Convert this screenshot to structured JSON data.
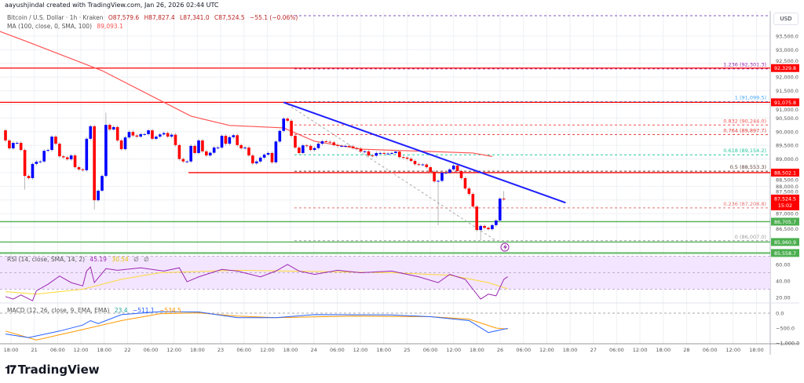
{
  "header": {
    "credit": "aayushjindal created with TradingView.com, Jan 26, 2026 02:44 UTC"
  },
  "legend": {
    "symbol": "Bitcoin / U.S. Dollar · 1h · Kraken",
    "open": "O87,579.6",
    "high": "H87,827.4",
    "low": "L87,341.0",
    "close": "C87,524.5",
    "change": "−55.1 (−0.06%)",
    "ma_label": "MA (100, close, 0, SMA, 100)",
    "ma_value": "89,093.1",
    "rsi_label": "RSI (14, close, SMA, 14, 2)",
    "rsi_value": "45.19",
    "rsi_ma_value": "30.54",
    "rsi_extra1": "∅",
    "rsi_extra2": "∅",
    "macd_label": "MACD (12, 26, close, 9, EMA, EMA)",
    "macd_hist": "23.4",
    "macd_value": "−511.1",
    "macd_signal": "−534.5"
  },
  "currency": "USD",
  "logo": {
    "text": "TradingView",
    "icon": "tradingview-logo-icon"
  },
  "colors": {
    "up": "#0000ff",
    "down": "#ff0000",
    "ma": "#ff5252",
    "trendline": "#1e1eff",
    "support": "#4caf50",
    "resistance": "#ff0000",
    "rsi": "#9c27b0",
    "rsi_ma": "#fdd835",
    "macd": "#2962ff",
    "signal": "#ff9800"
  },
  "chart_data": {
    "type": "candlestick",
    "interval": "1h",
    "start": "Jan 20 17:00",
    "ylim": [
      85400,
      94300
    ],
    "y_ticks": [
      "93,500.0",
      "93,000.0",
      "92,500.0",
      "92,000.0",
      "91,500.0",
      "91,000.0",
      "90,500.0",
      "90,000.0",
      "89,500.0",
      "89,000.0",
      "88,500.0",
      "88,000.0",
      "87,500.0",
      "87,000.0",
      "86,500.0"
    ],
    "y_tick_values": [
      93500,
      93000,
      92500,
      92000,
      91500,
      91000,
      90500,
      90000,
      89500,
      89000,
      88500,
      88000,
      87500,
      87000,
      86500
    ],
    "x_ticks": [
      "18:00",
      "21",
      "06:00",
      "12:00",
      "18:00",
      "22",
      "06:00",
      "12:00",
      "18:00",
      "23",
      "06:00",
      "12:00",
      "18:00",
      "24",
      "06:00",
      "12:00",
      "18:00",
      "25",
      "06:00",
      "12:00",
      "18:00",
      "26",
      "06:00",
      "12:00",
      "18:00",
      "27",
      "06:00",
      "12:00",
      "18:00",
      "28",
      "06:00",
      "12:00",
      "18:00"
    ],
    "first_open": 90050,
    "closes": [
      89680,
      89390,
      89590,
      89590,
      89330,
      88380,
      88300,
      88820,
      88900,
      88910,
      89300,
      89330,
      89820,
      89560,
      89100,
      89060,
      88990,
      89130,
      88700,
      88620,
      88590,
      89740,
      90200,
      87490,
      87840,
      88380,
      90250,
      90080,
      90170,
      89680,
      89360,
      89790,
      89990,
      89860,
      89820,
      89910,
      89910,
      90050,
      89740,
      89820,
      89900,
      89950,
      89820,
      89890,
      89510,
      89000,
      88910,
      88910,
      89480,
      89220,
      89680,
      89280,
      89130,
      89230,
      89420,
      89420,
      89850,
      89560,
      89800,
      89870,
      89510,
      89390,
      89420,
      89130,
      88840,
      88910,
      89050,
      89160,
      89220,
      88880,
      89640,
      90030,
      90480,
      90400,
      89850,
      89420,
      89220,
      89500,
      89480,
      89330,
      89400,
      89560,
      89650,
      89630,
      89610,
      89510,
      89480,
      89480,
      89480,
      89460,
      89400,
      89380,
      89280,
      89280,
      89130,
      89120,
      89220,
      89220,
      89200,
      89200,
      89220,
      89270,
      89070,
      89050,
      89010,
      88930,
      88810,
      88800,
      88800,
      88700,
      88530,
      88180,
      88200,
      88500,
      88500,
      88620,
      88760,
      88560,
      88300,
      87920,
      87720,
      87260,
      86400,
      86550,
      86480,
      86430,
      86580,
      86750,
      87550,
      87524.5
    ],
    "notable_wicks": [
      {
        "index": 5,
        "low": 87880
      },
      {
        "index": 23,
        "low": 87150
      },
      {
        "index": 26,
        "high": 90700
      },
      {
        "index": 112,
        "low": 86570
      },
      {
        "index": 123,
        "low": 86030
      },
      {
        "index": 129,
        "high": 87827.4
      }
    ],
    "ma100": [
      [
        -2,
        93700
      ],
      [
        5,
        93330
      ],
      [
        25,
        92235
      ],
      [
        48,
        90570
      ],
      [
        58,
        90230
      ],
      [
        72,
        90140
      ],
      [
        80,
        89650
      ],
      [
        92,
        89360
      ],
      [
        109,
        89280
      ],
      [
        121,
        89220
      ],
      [
        126,
        89093.1
      ]
    ],
    "horizontal_levels": [
      {
        "price": 92329.8,
        "label": "92,329.8",
        "kind": "resistance"
      },
      {
        "price": 91075.8,
        "label": "91,075.8",
        "kind": "resistance"
      },
      {
        "price": 88502.1,
        "label": "88,502.1",
        "kind": "resistance"
      },
      {
        "price": 86705.7,
        "label": "86,705.7",
        "kind": "support"
      },
      {
        "price": 85960.9,
        "label": "85,960.9",
        "kind": "support"
      },
      {
        "price": 85558.7,
        "label": "85,558.7",
        "kind": "support"
      }
    ],
    "last_price": {
      "label": "87,524.5",
      "countdown": "15:02",
      "price": 87524.5
    },
    "fib_levels": [
      {
        "ratio": "1.618",
        "price": 94246.6,
        "label": "",
        "color": "#7e57c2"
      },
      {
        "ratio": "1.236",
        "price": 92301.3,
        "label": "1.236 (92,301.3)",
        "color": "#9c27b0"
      },
      {
        "ratio": "1",
        "price": 91099.5,
        "label": "1 (91,099.5)",
        "color": "#42a5f5"
      },
      {
        "ratio": "0.832",
        "price": 90244.0,
        "label": "0.832 (90,244.0)",
        "color": "#ef5350"
      },
      {
        "ratio": "0.764",
        "price": 89897.7,
        "label": "0.764 (89,897.7)",
        "color": "#e53935"
      },
      {
        "ratio": "0.618",
        "price": 89154.2,
        "label": "0.618 (89,154.2)",
        "color": "#26c6a0"
      },
      {
        "ratio": "0.5",
        "price": 88553.3,
        "label": "0.5 (88,553.3)",
        "color": "#5d4037"
      },
      {
        "ratio": "0.236",
        "price": 87208.8,
        "label": "0.236 (87,208.8)",
        "color": "#e57373"
      },
      {
        "ratio": "0",
        "price": 86007.0,
        "label": "0 (86,007.0)",
        "color": "#9e9e9e"
      }
    ],
    "trendline": [
      [
        72,
        91075
      ],
      [
        145,
        87400
      ]
    ],
    "fib_trend": [
      [
        73,
        91000
      ],
      [
        127,
        86007
      ]
    ],
    "rsi": {
      "y_ticks": [
        "60.00",
        "40.00",
        "20.00"
      ],
      "y_tick_values": [
        60,
        40,
        20
      ],
      "band": [
        30,
        70
      ],
      "values": [
        [
          0,
          21
        ],
        [
          2,
          18
        ],
        [
          4,
          23
        ],
        [
          7,
          16
        ],
        [
          8,
          28
        ],
        [
          11,
          36
        ],
        [
          14,
          46
        ],
        [
          17,
          38
        ],
        [
          20,
          34
        ],
        [
          21,
          52
        ],
        [
          22,
          57
        ],
        [
          23,
          38
        ],
        [
          26,
          55
        ],
        [
          29,
          53
        ],
        [
          35,
          56
        ],
        [
          41,
          52
        ],
        [
          45,
          56
        ],
        [
          47,
          39
        ],
        [
          50,
          45
        ],
        [
          56,
          54
        ],
        [
          60,
          52
        ],
        [
          66,
          45
        ],
        [
          70,
          52
        ],
        [
          73,
          60
        ],
        [
          76,
          52
        ],
        [
          80,
          48
        ],
        [
          86,
          53
        ],
        [
          92,
          50
        ],
        [
          100,
          52
        ],
        [
          107,
          45
        ],
        [
          112,
          38
        ],
        [
          115,
          48
        ],
        [
          119,
          42
        ],
        [
          121,
          30
        ],
        [
          123,
          18
        ],
        [
          125,
          24
        ],
        [
          127,
          22
        ],
        [
          129,
          42
        ],
        [
          130,
          45.19
        ]
      ],
      "ma": [
        [
          0,
          27
        ],
        [
          8,
          24
        ],
        [
          20,
          30
        ],
        [
          30,
          42
        ],
        [
          40,
          50
        ],
        [
          60,
          53
        ],
        [
          100,
          50
        ],
        [
          115,
          47
        ],
        [
          125,
          38
        ],
        [
          130,
          30.54
        ]
      ]
    },
    "macd": {
      "y_ticks": [
        "0.0",
        "−500.0",
        "−1,000.0"
      ],
      "y_tick_values": [
        0,
        -500,
        -1000
      ],
      "macd": [
        [
          0,
          -700
        ],
        [
          6,
          -820
        ],
        [
          14,
          -600
        ],
        [
          20,
          -400
        ],
        [
          22,
          -250
        ],
        [
          24,
          -350
        ],
        [
          30,
          -50
        ],
        [
          40,
          50
        ],
        [
          50,
          40
        ],
        [
          60,
          -150
        ],
        [
          70,
          -150
        ],
        [
          80,
          -50
        ],
        [
          100,
          -60
        ],
        [
          110,
          -120
        ],
        [
          120,
          -250
        ],
        [
          125,
          -650
        ],
        [
          130,
          -511.1
        ]
      ],
      "signal": [
        [
          0,
          -600
        ],
        [
          8,
          -900
        ],
        [
          20,
          -550
        ],
        [
          30,
          -250
        ],
        [
          40,
          -20
        ],
        [
          50,
          10
        ],
        [
          60,
          -100
        ],
        [
          70,
          -150
        ],
        [
          90,
          -100
        ],
        [
          110,
          -120
        ],
        [
          120,
          -200
        ],
        [
          127,
          -500
        ],
        [
          130,
          -534.5
        ]
      ]
    }
  }
}
